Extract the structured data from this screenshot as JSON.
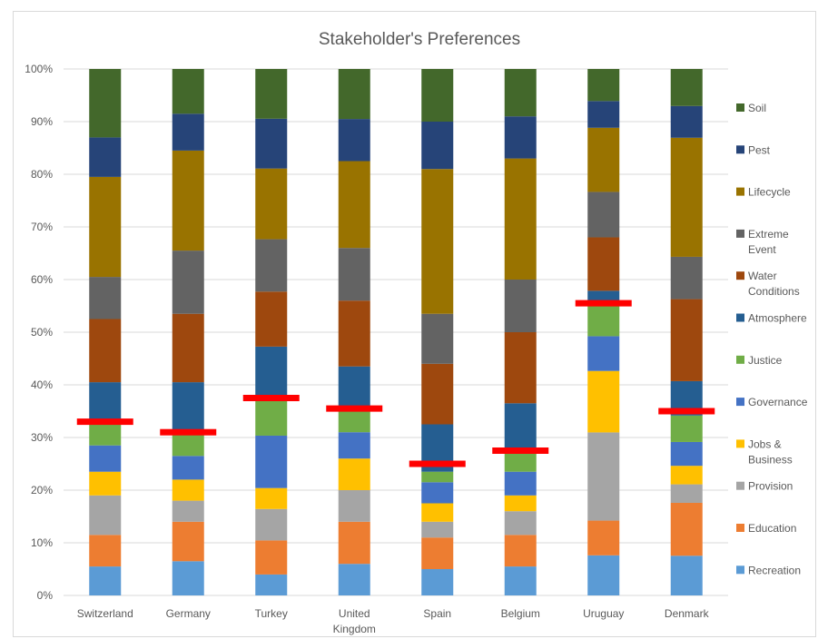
{
  "chart_data": {
    "type": "bar",
    "stacked": "percent",
    "title": "Stakeholder's Preferences",
    "xlabel": "",
    "ylabel": "",
    "ylim": [
      0,
      100
    ],
    "y_ticks": [
      "0%",
      "10%",
      "20%",
      "30%",
      "40%",
      "50%",
      "60%",
      "70%",
      "80%",
      "90%",
      "100%"
    ],
    "categories": [
      [
        "Switzerland"
      ],
      [
        "Germany"
      ],
      [
        "Turkey"
      ],
      [
        "United",
        "Kingdom"
      ],
      [
        "Spain"
      ],
      [
        "Belgium"
      ],
      [
        "Uruguay"
      ],
      [
        "Denmark"
      ]
    ],
    "grid": true,
    "legend_position": "right",
    "series": [
      {
        "name": "Recreation",
        "color": "#5B9BD5",
        "values": [
          5.5,
          6.5,
          4.0,
          6.0,
          5.0,
          5.5,
          7.5,
          7.5
        ]
      },
      {
        "name": "Education",
        "color": "#ED7D31",
        "values": [
          6.0,
          7.5,
          6.5,
          8.0,
          6.0,
          6.0,
          6.5,
          10.0
        ]
      },
      {
        "name": "Provision",
        "color": "#A5A5A5",
        "values": [
          7.5,
          4.0,
          6.0,
          6.0,
          3.0,
          4.5,
          16.5,
          3.5
        ]
      },
      {
        "name": "Jobs & Business",
        "color": "#FFC000",
        "values": [
          4.5,
          4.0,
          4.0,
          6.0,
          3.5,
          3.0,
          11.5,
          3.5
        ]
      },
      {
        "name": "Governance",
        "color": "#4472C4",
        "values": [
          5.0,
          4.5,
          10.0,
          5.0,
          4.0,
          4.5,
          6.5,
          4.5
        ]
      },
      {
        "name": "Justice",
        "color": "#70AD47",
        "values": [
          4.5,
          4.0,
          7.0,
          4.0,
          2.0,
          3.5,
          6.5,
          5.0
        ]
      },
      {
        "name": "Atmosphere",
        "color": "#255E91",
        "values": [
          7.5,
          10.0,
          10.0,
          8.5,
          9.0,
          9.5,
          2.0,
          6.5
        ]
      },
      {
        "name": "Water Conditions",
        "color": "#9E480E",
        "values": [
          12.0,
          13.0,
          10.5,
          12.5,
          11.5,
          13.5,
          10.0,
          15.5
        ]
      },
      {
        "name": "Extreme Event",
        "color": "#636363",
        "values": [
          8.0,
          12.0,
          10.0,
          10.0,
          9.5,
          10.0,
          8.5,
          8.0
        ]
      },
      {
        "name": "Lifecycle",
        "color": "#997300",
        "values": [
          19.0,
          19.0,
          13.5,
          16.5,
          27.5,
          23.0,
          12.0,
          22.5
        ]
      },
      {
        "name": "Pest",
        "color": "#264478",
        "values": [
          7.5,
          7.0,
          9.5,
          8.0,
          9.0,
          8.0,
          5.0,
          6.0
        ]
      },
      {
        "name": "Soil",
        "color": "#43682B",
        "values": [
          13.0,
          8.5,
          9.5,
          9.5,
          10.0,
          9.0,
          6.0,
          7.0
        ]
      }
    ],
    "threshold_markers": {
      "color": "#FF0000",
      "values": [
        33,
        31,
        37.5,
        35.5,
        25,
        27.5,
        55.5,
        35
      ]
    }
  }
}
